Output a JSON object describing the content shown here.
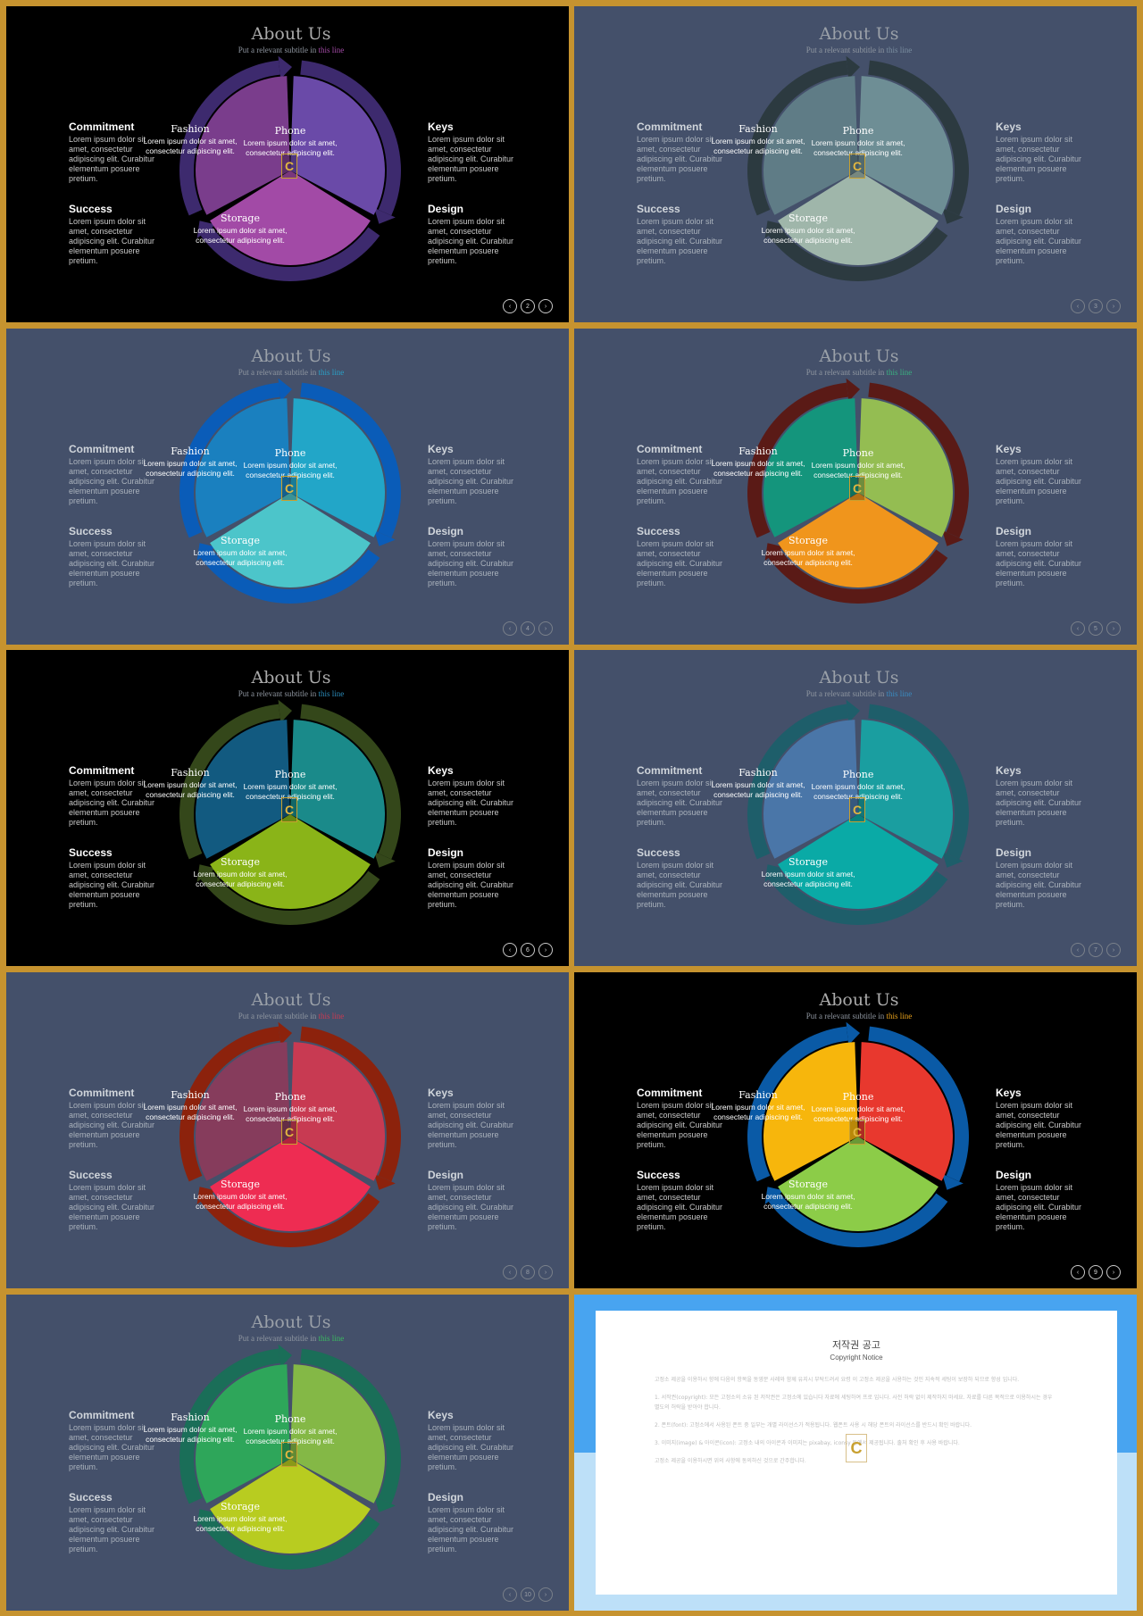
{
  "slide_text": {
    "title": "About Us",
    "subtitle_prefix": "Put a relevant subtitle in",
    "subtitle_highlight": "this line",
    "left_features": [
      {
        "heading": "Commitment",
        "body": "Lorem ipsum dolor sit amet, consectetur adipiscing elit. Curabitur elementum posuere pretium."
      },
      {
        "heading": "Success",
        "body": "Lorem ipsum dolor sit amet, consectetur adipiscing elit. Curabitur elementum posuere pretium."
      }
    ],
    "right_features": [
      {
        "heading": "Keys",
        "body": "Lorem ipsum dolor sit amet, consectetur adipiscing elit. Curabitur elementum posuere pretium."
      },
      {
        "heading": "Design",
        "body": "Lorem ipsum dolor sit amet, consectetur adipiscing elit. Curabitur elementum posuere pretium."
      }
    ],
    "segments": [
      {
        "title": "Fashion",
        "body": "Lorem ipsum dolor sit amet, consectetur adipiscing elit."
      },
      {
        "title": "Phone",
        "body": "Lorem ipsum dolor sit amet, consectetur adipiscing elit."
      },
      {
        "title": "Storage",
        "body": "Lorem ipsum dolor sit amet, consectetur adipiscing elit."
      }
    ],
    "logo_letter": "C"
  },
  "slides": [
    {
      "page": "2",
      "bg": "#000000",
      "dark": true,
      "ring": "#3d2a6e",
      "fashion": "#7a3d8c",
      "phone": "#6a4aa8",
      "storage": "#a24aa6",
      "highlight": "#a24aa6"
    },
    {
      "page": "3",
      "bg": "#44506a",
      "dark": false,
      "ring": "#2c3a40",
      "fashion": "#5f7c86",
      "phone": "#6e8e95",
      "storage": "#9fb6aa",
      "highlight": "#7a8ea0"
    },
    {
      "page": "4",
      "bg": "#44506a",
      "dark": false,
      "ring": "#0a5cb8",
      "fashion": "#1a80bf",
      "phone": "#22a6c8",
      "storage": "#4cc5ca",
      "highlight": "#2a9fc5"
    },
    {
      "page": "5",
      "bg": "#44506a",
      "dark": false,
      "ring": "#5a1a16",
      "fashion": "#14957c",
      "phone": "#94bd52",
      "storage": "#f0951c",
      "highlight": "#3aaf80"
    },
    {
      "page": "6",
      "bg": "#000000",
      "dark": true,
      "ring": "#34471a",
      "fashion": "#125a80",
      "phone": "#1a8a8a",
      "storage": "#8ab418",
      "highlight": "#2a8ab8"
    },
    {
      "page": "7",
      "bg": "#44506a",
      "dark": false,
      "ring": "#1e5e6a",
      "fashion": "#4a76a8",
      "phone": "#1a9ea0",
      "storage": "#0aaaa6",
      "highlight": "#3a8abf"
    },
    {
      "page": "8",
      "bg": "#44506a",
      "dark": false,
      "ring": "#8c220c",
      "fashion": "#863c5c",
      "phone": "#c83a52",
      "storage": "#ee2c52",
      "highlight": "#c83a52"
    },
    {
      "page": "9",
      "bg": "#000000",
      "dark": true,
      "ring": "#0a5aa6",
      "fashion": "#f7b60c",
      "phone": "#e8382e",
      "storage": "#8ccc48",
      "highlight": "#e8a21c"
    },
    {
      "page": "10",
      "bg": "#44506a",
      "dark": false,
      "ring": "#1a6e58",
      "fashion": "#2ea65a",
      "phone": "#84b846",
      "storage": "#b8cc20",
      "highlight": "#3ab860"
    }
  ],
  "notice": {
    "title": "저작권 공고",
    "subtitle": "Copyright Notice",
    "paragraphs": [
      "고정소 제공을 이용하시 향에 다음의 항목을 동영문 사례와 함께 유지시 부탁드려서 요령 이 고정소 제공을 사용하는 것인 지속적 세팅이 보장하 되므로 향성 입니다.",
      "1. 서작권(copyright): 모든 고정소의 소유 된 저작권은 고정소에 있습니다 자료에 세팅하여 프로 입니다. 사전 허락 없이 제작하지 마세요. 자료를 다른 목적으로 이용하시는 경우 별도의 허락을 받아야 합니다.",
      "2. 폰트(font): 고정소에서 사용된 폰트 중 일부는 개별 라이선스가 적용됩니다. 웹폰트 사용 시 해당 폰트의 라이선스를 반드시 확인 바랍니다.",
      "3. 이미지(image) & 아이콘(icon): 고정소 내의 아이콘과 이미지는 pixabay, iconsy 등에서 제공됩니다. 출처 확인 후 사용 바랍니다.",
      "고정소 제공을 이용하시면 위의 사항에 동의하신 것으로 간주합니다."
    ]
  }
}
